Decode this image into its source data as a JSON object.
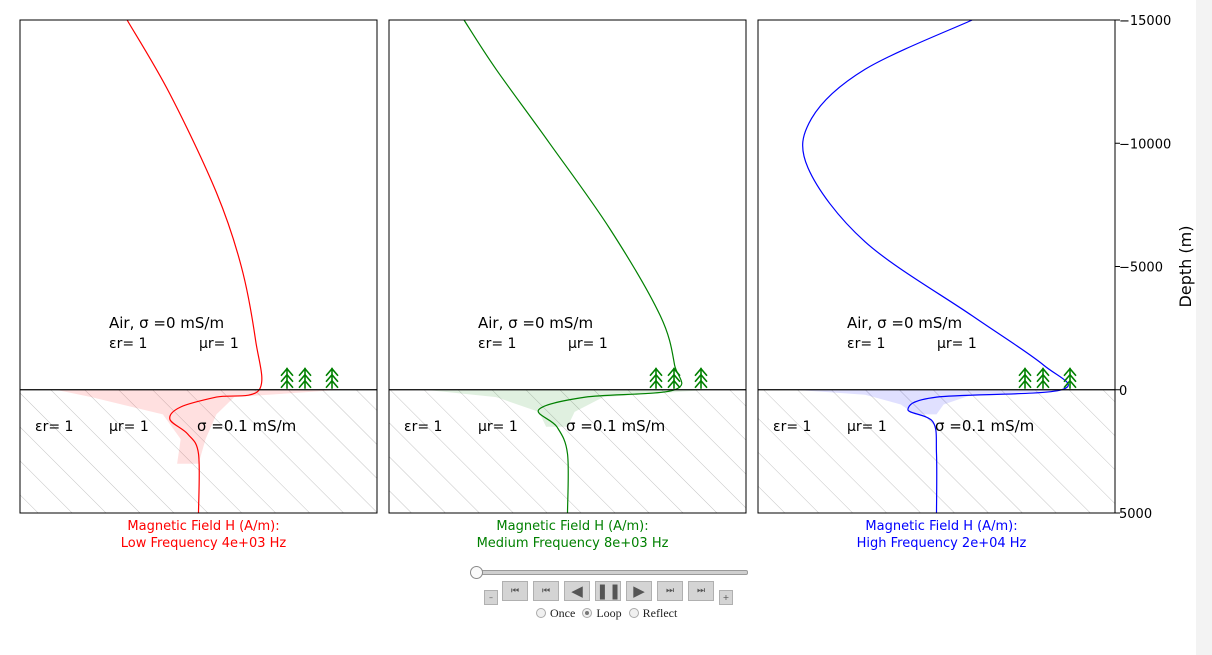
{
  "chart_data": {
    "type": "line",
    "y_axis": {
      "label": "Depth (m)",
      "range": [
        -15000,
        5000
      ],
      "ticks": [
        -15000,
        -10000,
        -5000,
        0,
        5000
      ],
      "tick_labels": [
        "−15000",
        "−10000",
        "−5000",
        "0",
        "5000"
      ],
      "position": "right"
    },
    "air_label": {
      "text": "Air, σ =0 mS/m",
      "epsilon": "εr= 1",
      "mu": "μr= 1"
    },
    "ground_label": {
      "epsilon": "εr= 1",
      "mu": "μr= 1",
      "sigma": "σ =0.1 mS/m"
    },
    "panels": [
      {
        "title_line1": "Magnetic Field H (A/m):",
        "title_line2": "Low Frequency 4e+03 Hz",
        "color": "#ff0000",
        "frequency_hz": 4000,
        "curve": [
          [
            0.3,
            -15000
          ],
          [
            0.42,
            -12000
          ],
          [
            0.55,
            -8000
          ],
          [
            0.62,
            -5000
          ],
          [
            0.66,
            -2000
          ],
          [
            0.67,
            0
          ],
          [
            0.55,
            300
          ],
          [
            0.45,
            700
          ],
          [
            0.42,
            1200
          ],
          [
            0.47,
            1800
          ],
          [
            0.5,
            2600
          ],
          [
            0.5,
            5000
          ]
        ],
        "envelope": [
          [
            0.9,
            0
          ],
          [
            0.6,
            300
          ],
          [
            0.55,
            1000
          ],
          [
            0.52,
            2000
          ],
          [
            0.5,
            3000
          ],
          [
            0.44,
            3000
          ],
          [
            0.45,
            2000
          ],
          [
            0.4,
            1000
          ],
          [
            0.2,
            300
          ],
          [
            0.1,
            0
          ]
        ]
      },
      {
        "title_line1": "Magnetic Field H (A/m):",
        "title_line2": "Medium Frequency 8e+03 Hz",
        "color": "#008000",
        "frequency_hz": 8000,
        "curve": [
          [
            0.21,
            -15000
          ],
          [
            0.3,
            -13000
          ],
          [
            0.45,
            -10000
          ],
          [
            0.62,
            -6500
          ],
          [
            0.76,
            -3000
          ],
          [
            0.8,
            -1000
          ],
          [
            0.8,
            0
          ],
          [
            0.55,
            300
          ],
          [
            0.42,
            800
          ],
          [
            0.47,
            1500
          ],
          [
            0.5,
            2600
          ],
          [
            0.5,
            5000
          ]
        ],
        "envelope": [
          [
            0.9,
            0
          ],
          [
            0.6,
            300
          ],
          [
            0.52,
            900
          ],
          [
            0.5,
            1500
          ],
          [
            0.44,
            1500
          ],
          [
            0.42,
            900
          ],
          [
            0.3,
            300
          ],
          [
            0.1,
            0
          ]
        ]
      },
      {
        "title_line1": "Magnetic Field H (A/m):",
        "title_line2": "High Frequency 2e+04 Hz",
        "color": "#0000ff",
        "frequency_hz": 20000,
        "curve": [
          [
            0.6,
            -15000
          ],
          [
            0.3,
            -13000
          ],
          [
            0.15,
            -11000
          ],
          [
            0.14,
            -9000
          ],
          [
            0.3,
            -6000
          ],
          [
            0.6,
            -3000
          ],
          [
            0.8,
            -1000
          ],
          [
            0.85,
            0
          ],
          [
            0.5,
            300
          ],
          [
            0.42,
            800
          ],
          [
            0.49,
            1300
          ],
          [
            0.5,
            2600
          ],
          [
            0.5,
            5000
          ]
        ],
        "envelope": [
          [
            0.9,
            0
          ],
          [
            0.6,
            200
          ],
          [
            0.52,
            600
          ],
          [
            0.5,
            1000
          ],
          [
            0.44,
            1000
          ],
          [
            0.4,
            600
          ],
          [
            0.3,
            200
          ],
          [
            0.1,
            0
          ]
        ]
      }
    ]
  },
  "controls": {
    "slider_value": 0,
    "buttons": {
      "minus": "–",
      "first": "⏮",
      "prev": "⏮",
      "reverse": "◀",
      "pause": "❚❚",
      "play": "▶",
      "next": "⏭",
      "last": "⏭",
      "plus": "+"
    },
    "modes": [
      "Once",
      "Loop",
      "Reflect"
    ],
    "selected_mode": "Loop"
  }
}
